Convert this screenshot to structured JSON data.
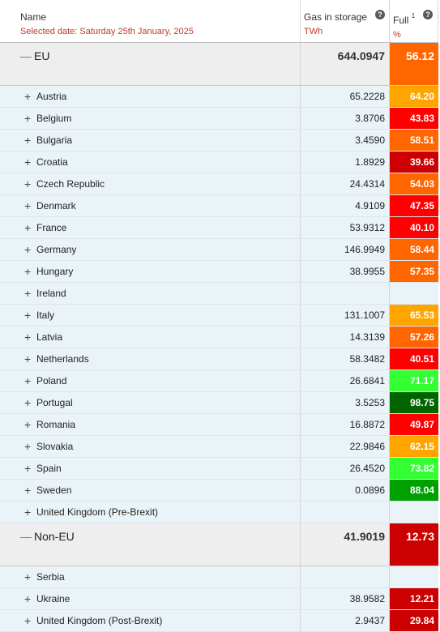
{
  "header": {
    "name_label": "Name",
    "selected_date": "Selected date: Saturday 25th January, 2025",
    "gas_label": "Gas in storage",
    "gas_unit": "TWh",
    "full_label": "Full",
    "full_sup": "1",
    "full_unit": "%",
    "help_glyph": "?"
  },
  "groups": [
    {
      "name": "EU",
      "toggle": "—",
      "gas": "644.0947",
      "full": "56.12",
      "color": "#ff6600",
      "rows": [
        {
          "name": "Austria",
          "gas": "65.2228",
          "full": "64.20",
          "color": "#ffa500"
        },
        {
          "name": "Belgium",
          "gas": "3.8706",
          "full": "43.83",
          "color": "#ff0000"
        },
        {
          "name": "Bulgaria",
          "gas": "3.4590",
          "full": "58.51",
          "color": "#ff6600"
        },
        {
          "name": "Croatia",
          "gas": "1.8929",
          "full": "39.66",
          "color": "#cc0000"
        },
        {
          "name": "Czech Republic",
          "gas": "24.4314",
          "full": "54.03",
          "color": "#ff6600"
        },
        {
          "name": "Denmark",
          "gas": "4.9109",
          "full": "47.35",
          "color": "#ff0000"
        },
        {
          "name": "France",
          "gas": "53.9312",
          "full": "40.10",
          "color": "#ff0000"
        },
        {
          "name": "Germany",
          "gas": "146.9949",
          "full": "58.44",
          "color": "#ff6600"
        },
        {
          "name": "Hungary",
          "gas": "38.9955",
          "full": "57.35",
          "color": "#ff6600"
        },
        {
          "name": "Ireland",
          "gas": "",
          "full": "",
          "color": ""
        },
        {
          "name": "Italy",
          "gas": "131.1007",
          "full": "65.53",
          "color": "#ffa500"
        },
        {
          "name": "Latvia",
          "gas": "14.3139",
          "full": "57.26",
          "color": "#ff6600"
        },
        {
          "name": "Netherlands",
          "gas": "58.3482",
          "full": "40.51",
          "color": "#ff0000"
        },
        {
          "name": "Poland",
          "gas": "26.6841",
          "full": "71.17",
          "color": "#33ff33"
        },
        {
          "name": "Portugal",
          "gas": "3.5253",
          "full": "98.75",
          "color": "#006400"
        },
        {
          "name": "Romania",
          "gas": "16.8872",
          "full": "49.87",
          "color": "#ff0000"
        },
        {
          "name": "Slovakia",
          "gas": "22.9846",
          "full": "62.15",
          "color": "#ffa500"
        },
        {
          "name": "Spain",
          "gas": "26.4520",
          "full": "73.82",
          "color": "#33ff33"
        },
        {
          "name": "Sweden",
          "gas": "0.0896",
          "full": "88.04",
          "color": "#00a000"
        },
        {
          "name": "United Kingdom (Pre-Brexit)",
          "gas": "",
          "full": "",
          "color": ""
        }
      ]
    },
    {
      "name": "Non-EU",
      "toggle": "—",
      "gas": "41.9019",
      "full": "12.73",
      "color": "#cc0000",
      "rows": [
        {
          "name": "Serbia",
          "gas": "",
          "full": "",
          "color": ""
        },
        {
          "name": "Ukraine",
          "gas": "38.9582",
          "full": "12.21",
          "color": "#cc0000"
        },
        {
          "name": "United Kingdom (Post-Brexit)",
          "gas": "2.9437",
          "full": "29.84",
          "color": "#cc0000"
        }
      ]
    }
  ],
  "expand_glyph": "+"
}
